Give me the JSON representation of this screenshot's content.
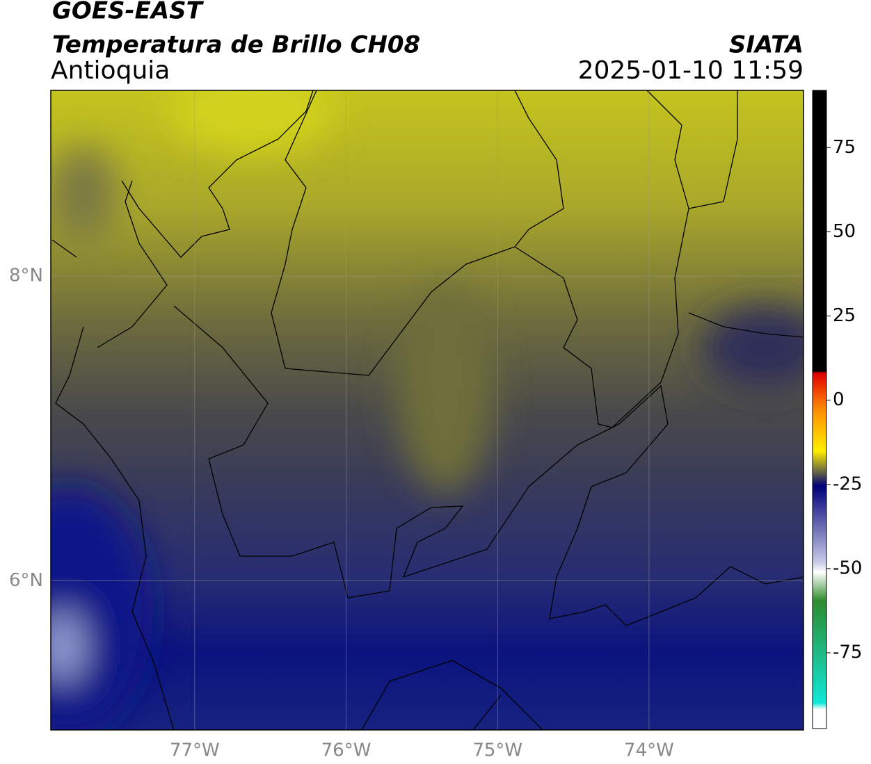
{
  "header": {
    "title": "GOES-EAST",
    "subtitle": "Temperatura de Brillo CH08",
    "region": "Antioquia",
    "source": "SIATA",
    "datetime": "2025-01-10 11:59"
  },
  "map": {
    "xlim": [
      -77.95,
      -72.98
    ],
    "ylim": [
      5.02,
      9.22
    ],
    "xticks": [
      {
        "value": -77,
        "label": "77°W"
      },
      {
        "value": -76,
        "label": "76°W"
      },
      {
        "value": -75,
        "label": "75°W"
      },
      {
        "value": -74,
        "label": "74°W"
      }
    ],
    "yticks": [
      {
        "value": 6,
        "label": "6°N"
      },
      {
        "value": 8,
        "label": "8°N"
      }
    ]
  },
  "colorbar": {
    "range": [
      -97.5,
      92
    ],
    "ticks": [
      75,
      50,
      25,
      0,
      -25,
      -50,
      -75
    ]
  }
}
